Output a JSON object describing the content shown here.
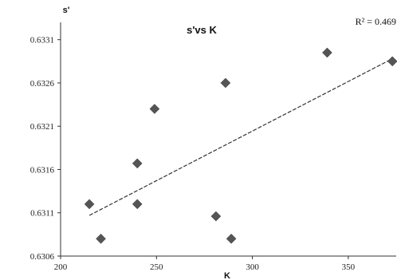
{
  "chart_data": {
    "type": "scatter",
    "title": "s'vs K",
    "xlabel": "K",
    "ylabel": "s'",
    "annotation": "R² = 0.469",
    "xlim": [
      200,
      375
    ],
    "ylim": [
      0.6306,
      0.6333
    ],
    "x_ticks": [
      "200",
      "250",
      "300",
      "350"
    ],
    "y_ticks": [
      "0.6306",
      "0.6311",
      "0.6316",
      "0.6321",
      "0.6326",
      "0.6331"
    ],
    "grid": false,
    "legend": "none",
    "points": [
      {
        "x": 215,
        "y": 0.6312
      },
      {
        "x": 221,
        "y": 0.6308
      },
      {
        "x": 240,
        "y": 0.6312
      },
      {
        "x": 240,
        "y": 0.63167
      },
      {
        "x": 249,
        "y": 0.6323
      },
      {
        "x": 281,
        "y": 0.63106
      },
      {
        "x": 286,
        "y": 0.6326
      },
      {
        "x": 289,
        "y": 0.6308
      },
      {
        "x": 339,
        "y": 0.63295
      },
      {
        "x": 373,
        "y": 0.63285
      }
    ],
    "trendline": {
      "x": [
        215,
        373
      ],
      "y": [
        0.63107,
        0.63288
      ]
    },
    "colors": {
      "marker": "#555555",
      "trendline": "#333333",
      "axis": "#333333"
    }
  }
}
